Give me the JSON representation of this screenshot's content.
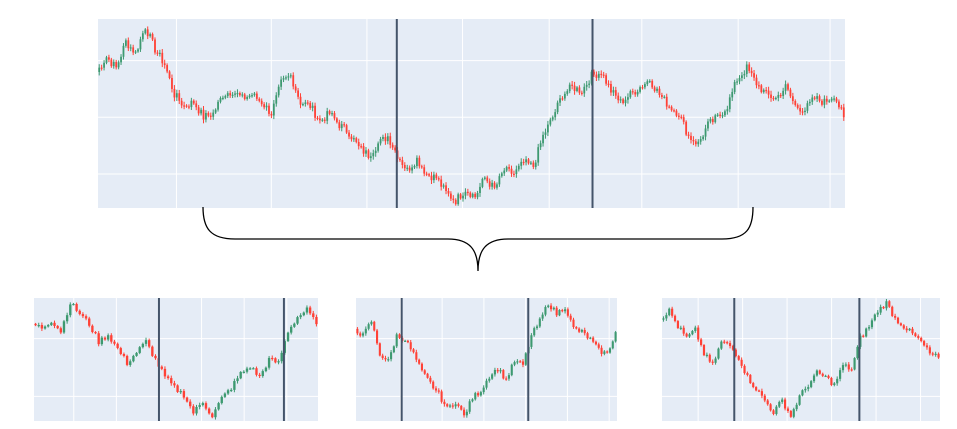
{
  "colors": {
    "panel_bg": "#e5ecf6",
    "grid": "#ffffff",
    "bull": "#3d9970",
    "bear": "#ff4136",
    "marker": "#44546a",
    "brace": "#000000"
  },
  "chart_data": [
    {
      "type": "candlestick",
      "role": "main",
      "title": "",
      "xlabel": "",
      "ylabel": "",
      "markers": [
        "window-start",
        "window-end"
      ],
      "price_path": [
        62,
        70,
        64,
        78,
        72,
        86,
        74,
        66,
        50,
        44,
        46,
        38,
        40,
        50,
        52,
        48,
        50,
        46,
        40,
        56,
        60,
        46,
        44,
        36,
        40,
        34,
        30,
        22,
        18,
        24,
        28,
        18,
        10,
        16,
        8,
        6,
        -2,
        -6,
        0,
        -4,
        6,
        0,
        10,
        8,
        14,
        12,
        28,
        38,
        50,
        54,
        52,
        60,
        62,
        52,
        46,
        50,
        54,
        58,
        50,
        44,
        40,
        28,
        24,
        34,
        38,
        44,
        58,
        64,
        56,
        50,
        48,
        54,
        44,
        42,
        48,
        46,
        50,
        38
      ],
      "legend": "none",
      "grid": true
    },
    {
      "type": "candlestick",
      "role": "window-1",
      "title": "",
      "markers": [
        "window-start",
        "window-end"
      ],
      "price_path": [
        50,
        48,
        52,
        46,
        62,
        56,
        50,
        40,
        44,
        36,
        28,
        34,
        40,
        30,
        20,
        14,
        10,
        0,
        6,
        -2,
        8,
        14,
        22,
        26,
        20,
        30,
        28,
        46,
        54,
        58,
        50
      ]
    },
    {
      "type": "candlestick",
      "role": "window-2",
      "title": "",
      "markers": [
        "window-start",
        "window-end"
      ],
      "price_path": [
        44,
        40,
        48,
        30,
        26,
        40,
        38,
        30,
        20,
        14,
        8,
        0,
        4,
        -4,
        6,
        10,
        18,
        22,
        16,
        26,
        24,
        40,
        48,
        58,
        52,
        56,
        44,
        42,
        38,
        32,
        30,
        42
      ]
    },
    {
      "type": "candlestick",
      "role": "window-3",
      "title": "",
      "markers": [
        "window-start",
        "window-end"
      ],
      "price_path": [
        48,
        52,
        44,
        38,
        42,
        30,
        24,
        36,
        34,
        28,
        18,
        12,
        6,
        0,
        6,
        -2,
        8,
        14,
        20,
        18,
        14,
        24,
        22,
        38,
        44,
        52,
        56,
        48,
        44,
        40,
        36,
        30,
        28
      ]
    }
  ]
}
